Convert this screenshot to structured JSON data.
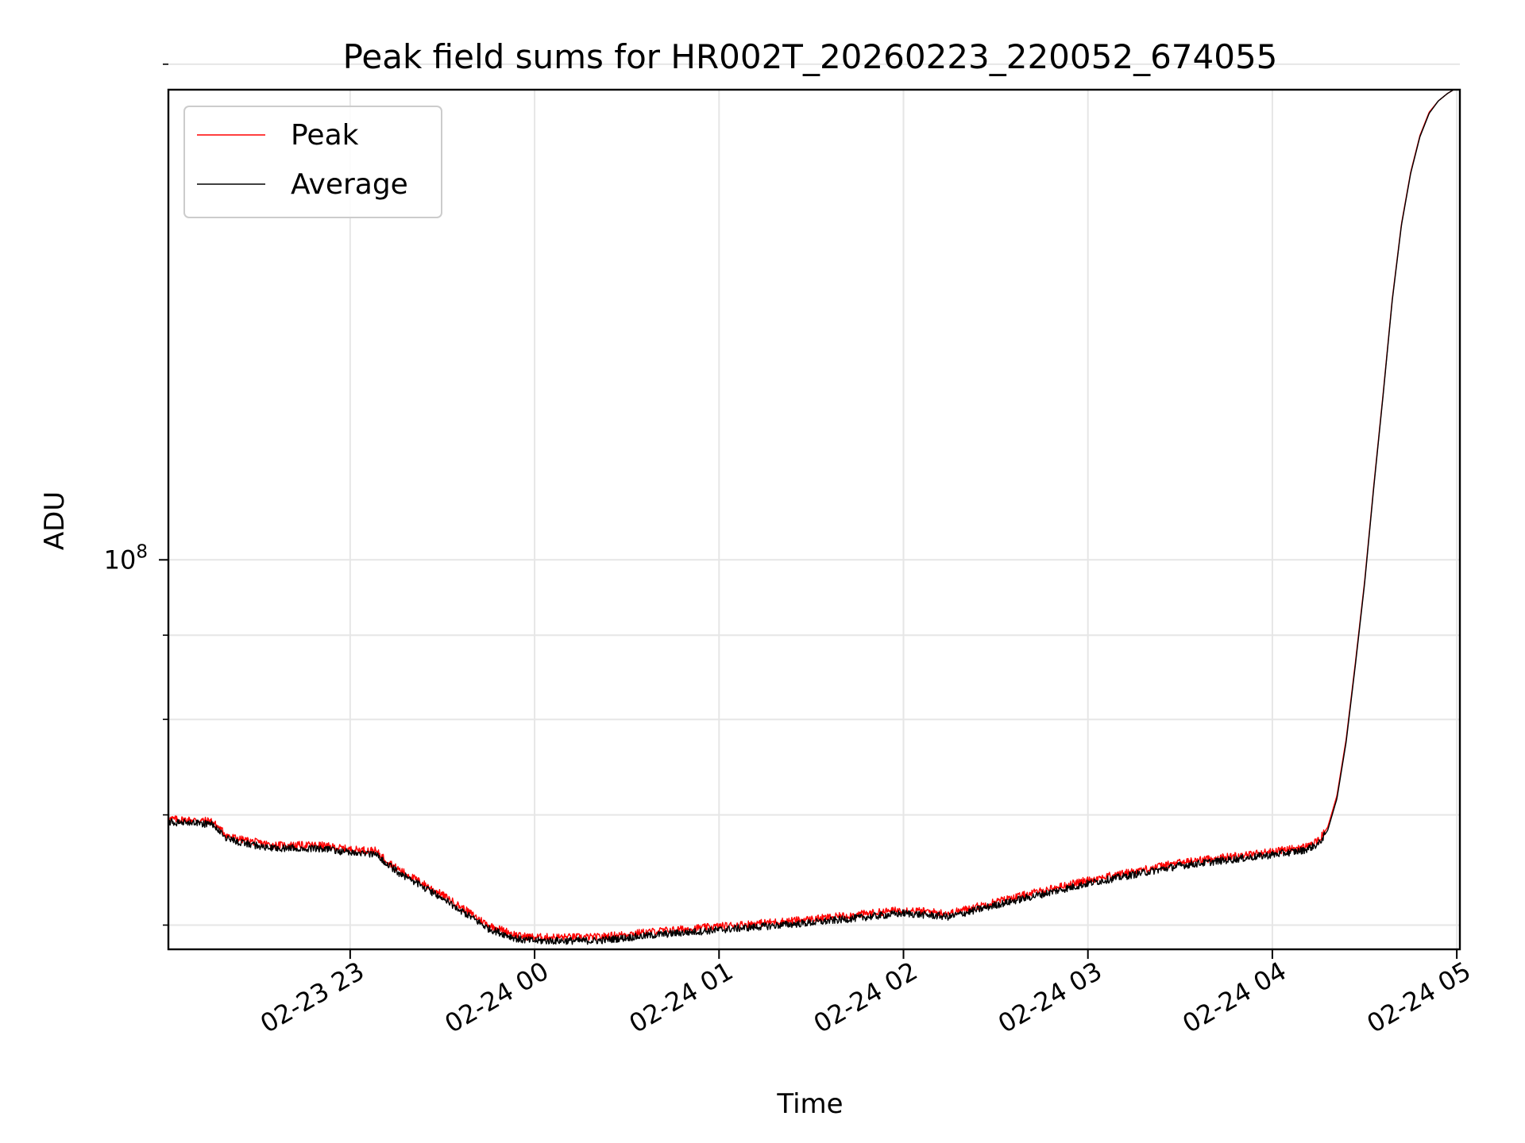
{
  "chart_data": {
    "type": "line",
    "title": "Peak field sums for HR002T_20260223_220052_674055",
    "xlabel": "Time",
    "ylabel": "ADU",
    "x_tick_labels": [
      "02-23 23",
      "02-24 00",
      "02-24 01",
      "02-24 02",
      "02-24 03",
      "02-24 04",
      "02-24 05"
    ],
    "y_tick_labels": [
      {
        "base": "10",
        "exp": "8"
      }
    ],
    "x_range": [
      "2026-02-23 22:00:52",
      "2026-02-24 05:01:00"
    ],
    "y_range": [
      58000000,
      193000000
    ],
    "y_scale": "log",
    "y_major_ticks": [
      100000000
    ],
    "y_minor_ticks": [
      60000000,
      70000000,
      80000000,
      90000000,
      200000000
    ],
    "grid": true,
    "legend_position": "upper-left",
    "colors": {
      "peak": "#ff0000",
      "average": "#000000",
      "grid": "#e6e6e6"
    },
    "keypoints_x": [
      "2026-02-23 22:00:52",
      "2026-02-23 22:08:00",
      "2026-02-23 22:15:00",
      "2026-02-23 22:20:00",
      "2026-02-23 22:25:00",
      "2026-02-23 22:35:00",
      "2026-02-23 22:50:00",
      "2026-02-23 23:00:00",
      "2026-02-23 23:08:00",
      "2026-02-23 23:15:00",
      "2026-02-23 23:30:00",
      "2026-02-23 23:45:00",
      "2026-02-23 23:55:00",
      "2026-02-24 00:00:00",
      "2026-02-24 00:20:00",
      "2026-02-24 00:40:00",
      "2026-02-24 01:00:00",
      "2026-02-24 01:30:00",
      "2026-02-24 02:00:00",
      "2026-02-24 02:15:00",
      "2026-02-24 02:30:00",
      "2026-02-24 03:00:00",
      "2026-02-24 03:30:00",
      "2026-02-24 04:00:00",
      "2026-02-24 04:10:00",
      "2026-02-24 04:15:00",
      "2026-02-24 04:18:00",
      "2026-02-24 04:21:00",
      "2026-02-24 04:24:00",
      "2026-02-24 04:27:00",
      "2026-02-24 04:30:00",
      "2026-02-24 04:33:00",
      "2026-02-24 04:36:00",
      "2026-02-24 04:39:00",
      "2026-02-24 04:42:00",
      "2026-02-24 04:45:00",
      "2026-02-24 04:48:00",
      "2026-02-24 04:51:00",
      "2026-02-24 04:54:00",
      "2026-02-24 04:57:00",
      "2026-02-24 04:59:00",
      "2026-02-24 05:01:00"
    ],
    "series": [
      {
        "name": "Peak",
        "color": "#ff0000",
        "values": [
          69600000,
          69500000,
          69400000,
          68000000,
          67600000,
          67100000,
          67100000,
          66700000,
          66600000,
          65000000,
          62600000,
          60000000,
          59100000,
          59000000,
          59000000,
          59500000,
          59900000,
          60500000,
          61300000,
          61000000,
          62000000,
          63900000,
          65500000,
          66500000,
          66900000,
          67500000,
          68800000,
          71900000,
          77800000,
          86600000,
          97000000,
          111000000,
          126000000,
          144000000,
          160000000,
          172000000,
          181000000,
          187000000,
          190000000,
          192000000,
          193000000,
          193000000
        ]
      },
      {
        "name": "Average",
        "color": "#000000",
        "values": [
          69300000,
          69200000,
          69100000,
          67700000,
          67300000,
          66800000,
          66800000,
          66400000,
          66300000,
          64700000,
          62300000,
          59700000,
          58800000,
          58700000,
          58700000,
          59200000,
          59600000,
          60200000,
          61000000,
          60700000,
          61700000,
          63600000,
          65200000,
          66200000,
          66600000,
          67200000,
          68500000,
          71600000,
          77500000,
          86300000,
          96700000,
          110700000,
          125700000,
          143700000,
          159700000,
          171700000,
          180700000,
          186700000,
          190000000,
          192000000,
          193000000,
          193000000
        ]
      }
    ]
  }
}
